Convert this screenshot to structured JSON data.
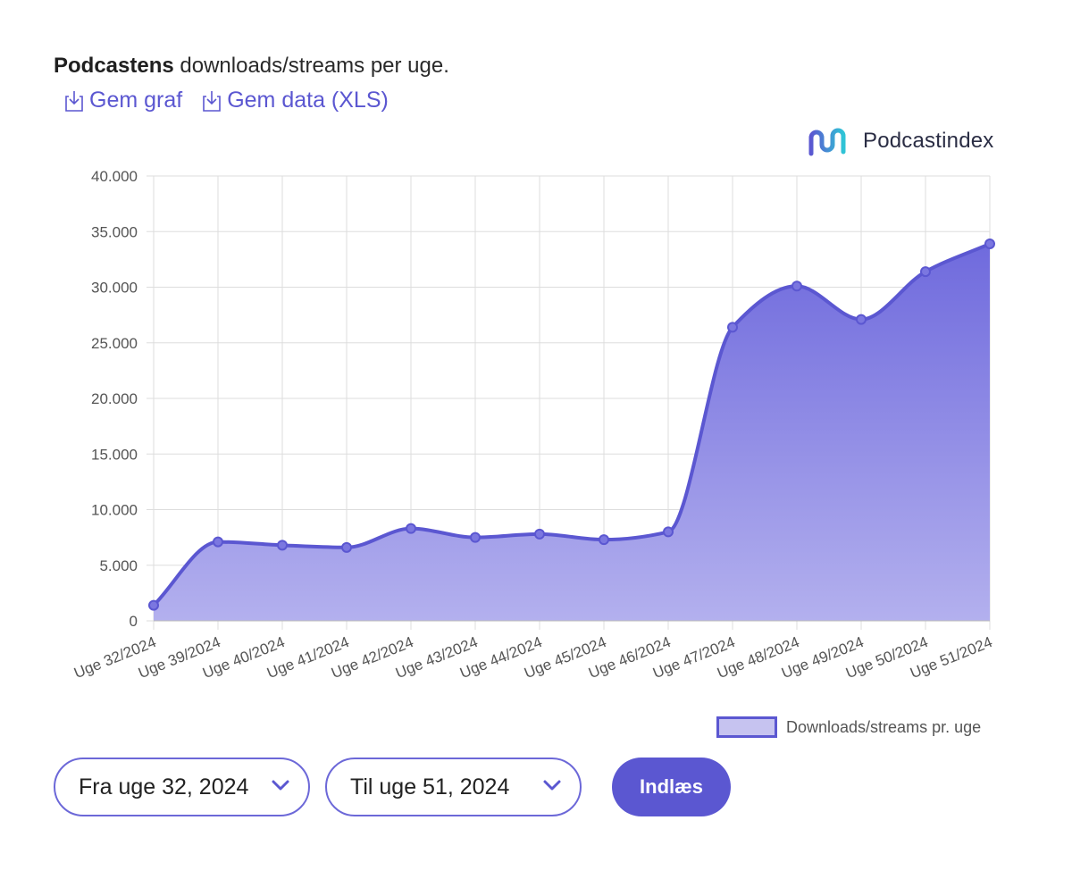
{
  "header": {
    "title_bold": "Podcastens",
    "title_rest": " downloads/streams per uge."
  },
  "actions": {
    "save_chart": "Gem graf",
    "save_data": "Gem data (XLS)"
  },
  "brand": {
    "name": "Podcastindex"
  },
  "colors": {
    "accent": "#5b57d1",
    "fill_top": "#6f6add",
    "fill_bottom": "#b3b0ee",
    "grid": "#dddddd"
  },
  "chart_data": {
    "type": "area",
    "title": "Podcastens downloads/streams per uge.",
    "categories": [
      "Uge 32/2024",
      "Uge 39/2024",
      "Uge 40/2024",
      "Uge 41/2024",
      "Uge 42/2024",
      "Uge 43/2024",
      "Uge 44/2024",
      "Uge 45/2024",
      "Uge 46/2024",
      "Uge 47/2024",
      "Uge 48/2024",
      "Uge 49/2024",
      "Uge 50/2024",
      "Uge 51/2024"
    ],
    "series": [
      {
        "name": "Downloads/streams pr. uge",
        "values": [
          1400,
          7100,
          6800,
          6600,
          8300,
          7500,
          7800,
          7300,
          8000,
          26400,
          30100,
          27100,
          31400,
          33900
        ]
      }
    ],
    "ylim": [
      0,
      40000
    ],
    "yticks": [
      0,
      5000,
      10000,
      15000,
      20000,
      25000,
      30000,
      35000,
      40000
    ],
    "ytick_labels": [
      "0",
      "5.000",
      "10.000",
      "15.000",
      "20.000",
      "25.000",
      "30.000",
      "35.000",
      "40.000"
    ],
    "xlabel": "",
    "ylabel": "",
    "grid": true,
    "legend": "bottom-right"
  },
  "controls": {
    "from_label": "Fra uge 32, 2024",
    "to_label": "Til uge 51, 2024",
    "load_label": "Indlæs"
  }
}
